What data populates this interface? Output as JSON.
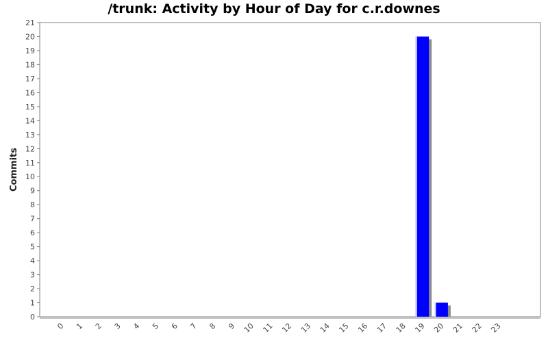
{
  "chart_data": {
    "type": "bar",
    "title": "/trunk: Activity by Hour of Day for c.r.downes",
    "xlabel": "",
    "ylabel": "Commits",
    "categories": [
      "0",
      "1",
      "2",
      "3",
      "4",
      "5",
      "6",
      "7",
      "8",
      "9",
      "10",
      "11",
      "12",
      "13",
      "14",
      "15",
      "16",
      "17",
      "18",
      "19",
      "20",
      "21",
      "22",
      "23"
    ],
    "values": [
      0,
      0,
      0,
      0,
      0,
      0,
      0,
      0,
      0,
      0,
      0,
      0,
      0,
      0,
      0,
      0,
      0,
      0,
      0,
      20,
      1,
      0,
      0,
      0
    ],
    "ylim": [
      0,
      21
    ],
    "yticks": [
      "0",
      "1",
      "2",
      "3",
      "4",
      "5",
      "6",
      "7",
      "8",
      "9",
      "10",
      "11",
      "12",
      "13",
      "14",
      "15",
      "16",
      "17",
      "18",
      "19",
      "20",
      "21"
    ],
    "grid": false,
    "legend": "none",
    "colors": {
      "bar": "#0000ff",
      "shadow": "#8c8c8c",
      "axis": "#808080"
    }
  }
}
